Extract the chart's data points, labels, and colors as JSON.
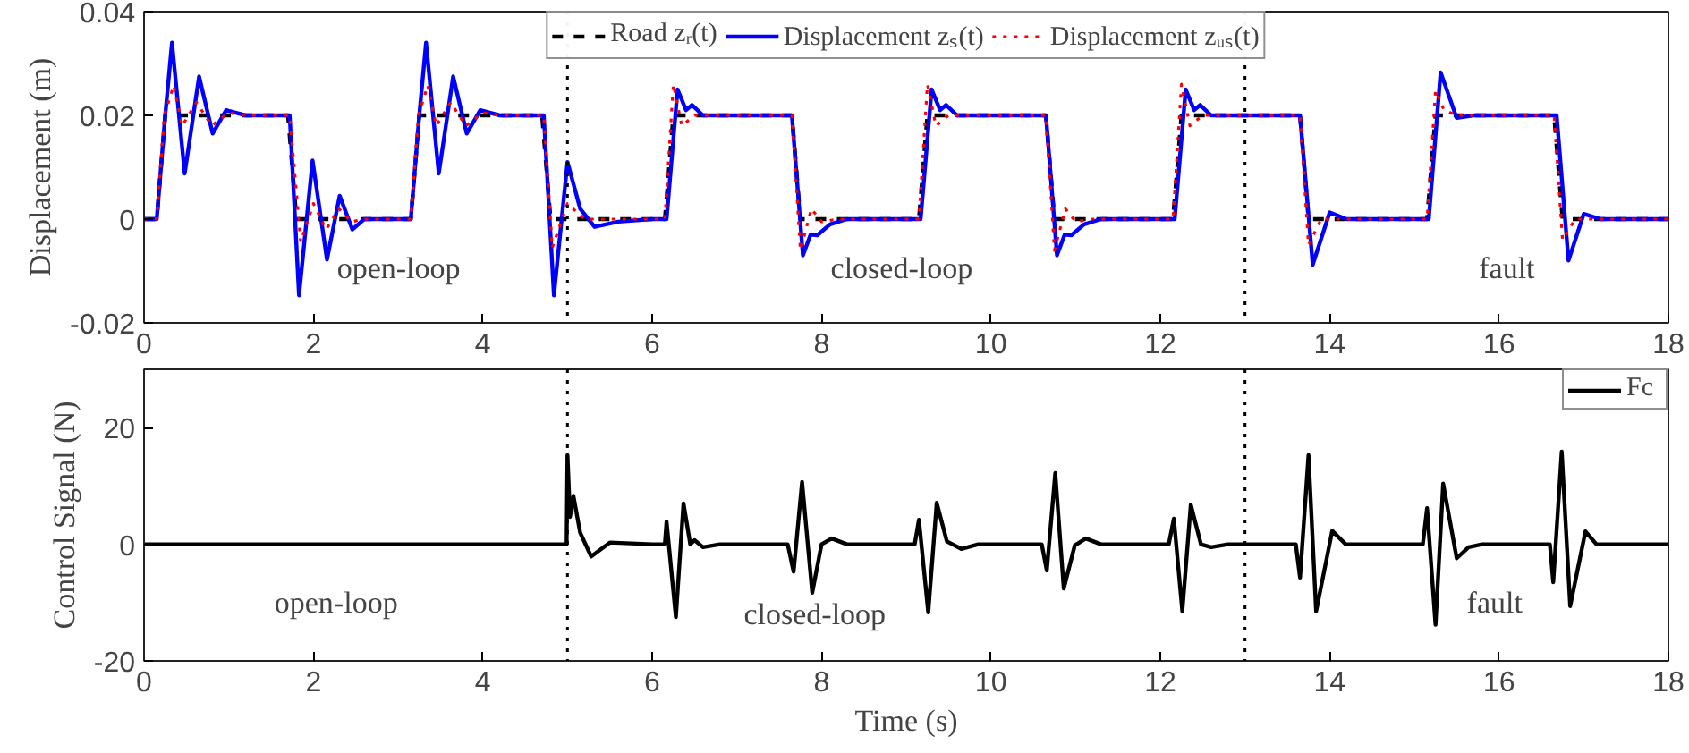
{
  "chart_data": [
    {
      "type": "line",
      "ylabel": "Displacement (m)",
      "xlim": [
        0,
        18
      ],
      "xticks": [
        0,
        2,
        4,
        6,
        8,
        10,
        12,
        14,
        16,
        18
      ],
      "ylim": [
        -0.02,
        0.04
      ],
      "yticks": [
        -0.02,
        0,
        0.02,
        0.04
      ],
      "grid": false,
      "legend": "top",
      "series": [
        {
          "name": "Road zᵣ(t)",
          "color": "#000000",
          "line_style": "dashed",
          "x": [
            0,
            0.15,
            0.25,
            1.7,
            1.8,
            3.15,
            3.25,
            4.7,
            4.8,
            6.15,
            6.25,
            7.65,
            7.75,
            9.15,
            9.25,
            10.65,
            10.75,
            12.15,
            12.25,
            13.65,
            13.75,
            15.15,
            15.25,
            16.65,
            16.75,
            18
          ],
          "values": [
            0,
            0,
            0.02,
            0.02,
            0,
            0,
            0.02,
            0.02,
            0,
            0,
            0.02,
            0.02,
            0,
            0,
            0.02,
            0.02,
            0,
            0,
            0.02,
            0.02,
            0,
            0,
            0.02,
            0.02,
            0,
            0
          ]
        },
        {
          "name": "Displacement zₛ(t)",
          "color": "#0000ff",
          "line_style": "solid",
          "x": [
            0,
            0.15,
            0.25,
            0.33,
            0.48,
            0.65,
            0.81,
            0.97,
            1.2,
            1.72,
            1.83,
            1.99,
            2.16,
            2.31,
            2.46,
            2.6,
            3.15,
            3.25,
            3.33,
            3.48,
            3.65,
            3.81,
            3.97,
            4.2,
            4.72,
            4.84,
            5.0,
            5.15,
            5.32,
            5.6,
            6.0,
            6.17,
            6.3,
            6.4,
            6.47,
            6.6,
            7.65,
            7.78,
            7.87,
            7.95,
            8.1,
            8.3,
            9.17,
            9.3,
            9.4,
            9.47,
            9.6,
            10.65,
            10.78,
            10.87,
            10.95,
            11.1,
            11.3,
            12.17,
            12.3,
            12.4,
            12.47,
            12.6,
            13.65,
            13.8,
            14.0,
            14.2,
            15.17,
            15.31,
            15.5,
            15.7,
            16.68,
            16.82,
            17.0,
            17.2,
            18
          ],
          "values": [
            0,
            0,
            0.02,
            0.034,
            0.0088,
            0.0275,
            0.0165,
            0.021,
            0.02,
            0.02,
            -0.0147,
            0.0113,
            -0.0078,
            0.0045,
            -0.002,
            0,
            0,
            0.02,
            0.034,
            0.0088,
            0.0275,
            0.0165,
            0.021,
            0.02,
            0.02,
            -0.0147,
            0.011,
            0.002,
            -0.0015,
            -0.0005,
            0,
            0,
            0.025,
            0.021,
            0.022,
            0.02,
            0.02,
            -0.007,
            -0.003,
            -0.0031,
            -0.001,
            0,
            0,
            0.025,
            0.021,
            0.022,
            0.02,
            0.02,
            -0.007,
            -0.003,
            -0.0031,
            -0.001,
            0,
            0,
            0.025,
            0.021,
            0.022,
            0.02,
            0.02,
            -0.0088,
            0.0013,
            0,
            0,
            0.0283,
            0.0195,
            0.02,
            0.02,
            -0.008,
            0.001,
            0,
            0
          ]
        },
        {
          "name": "Displacement zᵤₛ(t)",
          "color": "#ff0000",
          "line_style": "dotted",
          "x": [
            0,
            0.15,
            0.24,
            0.35,
            0.45,
            0.62,
            0.8,
            1.0,
            1.2,
            1.72,
            1.85,
            2.0,
            2.15,
            2.3,
            2.45,
            2.6,
            3.15,
            3.24,
            3.35,
            3.45,
            3.62,
            3.8,
            4.0,
            4.2,
            4.72,
            4.82,
            5.0,
            5.2,
            6.15,
            6.25,
            6.35,
            6.5,
            7.65,
            7.75,
            7.88,
            8.0,
            8.2,
            9.15,
            9.25,
            9.35,
            9.5,
            10.65,
            10.75,
            10.88,
            11.0,
            11.2,
            12.15,
            12.25,
            12.35,
            12.5,
            13.65,
            13.75,
            13.9,
            15.15,
            15.25,
            15.35,
            15.5,
            16.65,
            16.75,
            16.9,
            18
          ],
          "values": [
            0,
            0,
            0.02,
            0.0258,
            0.018,
            0.0225,
            0.018,
            0.0205,
            0.02,
            0.02,
            -0.0044,
            0.003,
            -0.002,
            0.002,
            -0.0005,
            0,
            0,
            0.02,
            0.0258,
            0.018,
            0.0225,
            0.018,
            0.0205,
            0.02,
            0.02,
            -0.0055,
            0.003,
            0,
            0,
            0.026,
            0.018,
            0.02,
            0.02,
            -0.006,
            0.002,
            -0.0005,
            0,
            0,
            0.026,
            0.018,
            0.02,
            0.02,
            -0.006,
            0.002,
            -0.0005,
            0,
            0,
            0.026,
            0.018,
            0.02,
            0.02,
            -0.005,
            0,
            0,
            0.0248,
            0.021,
            0.02,
            0.02,
            -0.004,
            0,
            0
          ]
        }
      ],
      "ref_lines": [
        {
          "axis": "x",
          "value": 5,
          "color": "#000000",
          "line_style": "dotted"
        },
        {
          "axis": "x",
          "value": 13,
          "color": "#000000",
          "line_style": "dotted"
        }
      ],
      "annotations": [
        "open-loop",
        "closed-loop",
        "fault"
      ]
    },
    {
      "type": "line",
      "xlabel": "Time (s)",
      "ylabel": "Control Signal (N)",
      "xlim": [
        0,
        18
      ],
      "xticks": [
        0,
        2,
        4,
        6,
        8,
        10,
        12,
        14,
        16,
        18
      ],
      "ylim": [
        -20,
        30
      ],
      "yticks": [
        -20,
        0,
        20
      ],
      "grid": false,
      "legend": "top right",
      "series": [
        {
          "name": "Fc",
          "color": "#000000",
          "line_style": "solid",
          "x": [
            0,
            4.99,
            5.0,
            5.03,
            5.07,
            5.15,
            5.28,
            5.5,
            6.0,
            6.15,
            6.17,
            6.28,
            6.37,
            6.45,
            6.5,
            6.6,
            6.8,
            7.6,
            7.67,
            7.77,
            7.89,
            8.0,
            8.12,
            8.3,
            9.1,
            9.15,
            9.26,
            9.36,
            9.48,
            9.65,
            9.85,
            10.6,
            10.66,
            10.76,
            10.86,
            10.99,
            11.12,
            11.3,
            12.1,
            12.16,
            12.26,
            12.36,
            12.48,
            12.6,
            12.8,
            13.6,
            13.65,
            13.75,
            13.84,
            14.03,
            14.19,
            15.1,
            15.15,
            15.25,
            15.34,
            15.5,
            15.64,
            15.8,
            16.6,
            16.64,
            16.74,
            16.84,
            17.02,
            17.15,
            18
          ],
          "values": [
            0,
            0,
            15.3,
            4.7,
            8.3,
            2,
            -2.1,
            0.3,
            0,
            0,
            3.9,
            -12.5,
            7.0,
            0,
            0.7,
            -0.5,
            0,
            0,
            -4.7,
            10.7,
            -8.3,
            0,
            1.0,
            0,
            0,
            4.2,
            -11.7,
            7.1,
            0.5,
            -0.8,
            0,
            0,
            -4.5,
            12.2,
            -7.6,
            -0.2,
            1.0,
            0,
            0,
            4.4,
            -11.5,
            6.8,
            0,
            -0.5,
            0,
            0,
            -5.7,
            15.3,
            -11.5,
            2.3,
            0,
            0,
            6.2,
            -13.8,
            10.4,
            -2.4,
            -0.5,
            0,
            0,
            -6.5,
            15.9,
            -10.6,
            2.2,
            0,
            0
          ]
        }
      ],
      "ref_lines": [
        {
          "axis": "x",
          "value": 5,
          "color": "#000000",
          "line_style": "dotted"
        },
        {
          "axis": "x",
          "value": 13,
          "color": "#000000",
          "line_style": "dotted"
        }
      ],
      "annotations": [
        "open-loop",
        "closed-loop",
        "fault"
      ]
    }
  ]
}
